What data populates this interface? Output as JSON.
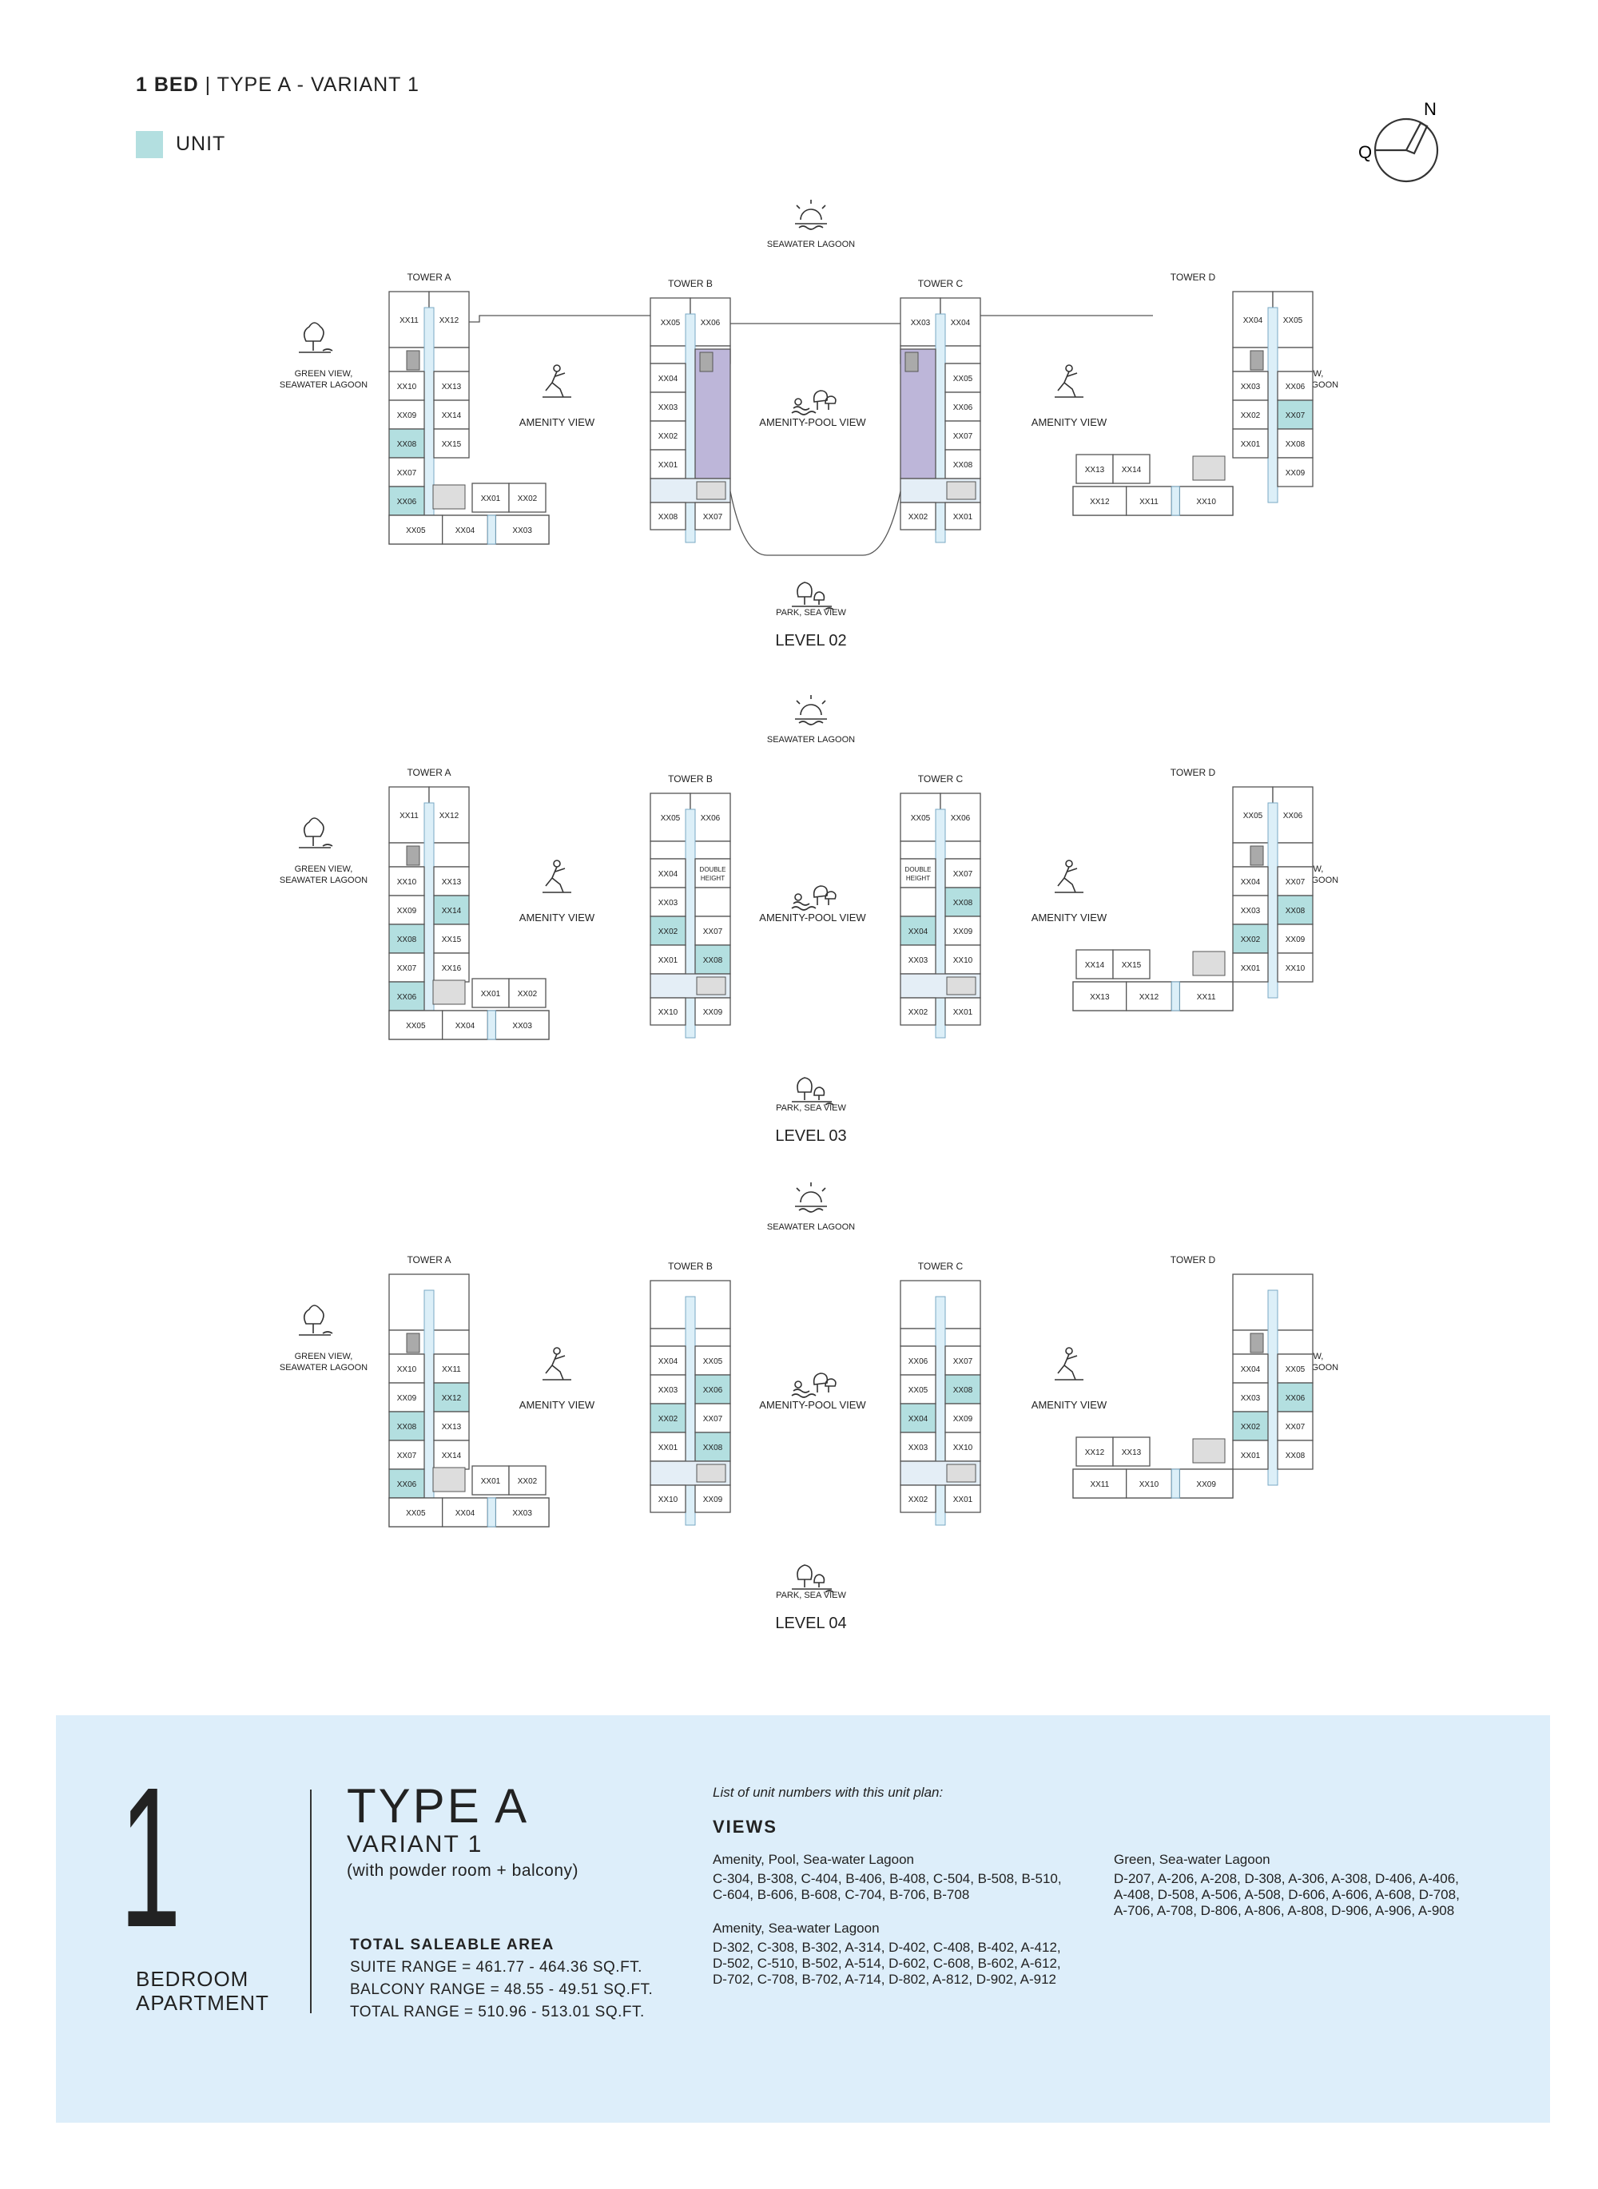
{
  "header": {
    "title_bold": "1 BED",
    "title_rest": "| TYPE A - VARIANT 1",
    "legend_label": "UNIT",
    "legend_color": "#b3dfe0"
  },
  "compass": {
    "north": "N",
    "letter": "Q"
  },
  "colors": {
    "unit": "#b3dfe0",
    "amenity": "#bdb6d9",
    "corridor": "#dceff8",
    "outline": "#555555"
  },
  "view_labels": {
    "seawater_lagoon": "SEAWATER LAGOON",
    "park_sea": "PARK, SEA VIEW",
    "green_l1": "GREEN VIEW,",
    "green_l2": "SEAWATER LAGOON",
    "amenity": "AMENITY VIEW",
    "amenity_pool": "AMENITY-POOL VIEW"
  },
  "towers": {
    "a": "TOWER A",
    "b": "TOWER B",
    "c": "TOWER C",
    "d": "TOWER D"
  },
  "levels": [
    {
      "name": "LEVEL 02",
      "a": {
        "top": [
          "XX11",
          "XX12"
        ],
        "left": [
          "XX10",
          "XX09",
          "XX08",
          "XX07",
          "XX06"
        ],
        "right": [
          "XX13",
          "XX14",
          "XX15"
        ],
        "wing": [
          "XX01",
          "XX02"
        ],
        "bottom": [
          "XX05",
          "XX04",
          "XX03"
        ],
        "highlight": [
          "XX08",
          "XX06"
        ]
      },
      "b": {
        "top": [
          "XX05",
          "XX06"
        ],
        "left": [
          "XX04",
          "XX03",
          "XX02",
          "XX01"
        ],
        "right": [],
        "bottom": [
          "XX08",
          "XX07"
        ],
        "highlight": [],
        "amenity_block": true
      },
      "c": {
        "top": [
          "XX03",
          "XX04"
        ],
        "left": [],
        "right": [
          "XX05",
          "XX06",
          "XX07",
          "XX08"
        ],
        "bottom": [
          "XX02",
          "XX01"
        ],
        "highlight": [],
        "amenity_block": true
      },
      "d": {
        "top": [
          "XX04",
          "XX05"
        ],
        "left": [
          "XX03",
          "XX02",
          "XX01"
        ],
        "right": [
          "XX06",
          "XX07",
          "XX08",
          "XX09"
        ],
        "wing": [
          "XX13",
          "XX14"
        ],
        "bottom": [
          "XX12",
          "XX11",
          "XX10"
        ],
        "highlight": [
          "XX07"
        ]
      }
    },
    {
      "name": "LEVEL 03",
      "a": {
        "top": [
          "XX11",
          "XX12"
        ],
        "left": [
          "XX10",
          "XX09",
          "XX08",
          "XX07",
          "XX06"
        ],
        "right": [
          "XX13",
          "XX14",
          "XX15",
          "XX16"
        ],
        "wing": [
          "XX01",
          "XX02"
        ],
        "bottom": [
          "XX05",
          "XX04",
          "XX03"
        ],
        "highlight": [
          "XX14",
          "XX08",
          "XX06"
        ]
      },
      "b": {
        "top": [
          "XX05",
          "XX06"
        ],
        "left": [
          "XX04",
          "XX03",
          "XX02",
          "XX01"
        ],
        "right": [
          "DOUBLE HEIGHT",
          "",
          "XX07",
          "XX08"
        ],
        "bottom": [
          "XX10",
          "XX09"
        ],
        "highlight": [
          "XX02",
          "XX08"
        ]
      },
      "c": {
        "top": [
          "XX05",
          "XX06"
        ],
        "left": [
          "DOUBLE HEIGHT",
          "",
          "XX04",
          "XX03"
        ],
        "right": [
          "XX07",
          "XX08",
          "XX09",
          "XX10"
        ],
        "bottom": [
          "XX02",
          "XX01"
        ],
        "highlight": [
          "XX08",
          "XX04"
        ]
      },
      "d": {
        "top": [
          "XX05",
          "XX06"
        ],
        "left": [
          "XX04",
          "XX03",
          "XX02",
          "XX01"
        ],
        "right": [
          "XX07",
          "XX08",
          "XX09",
          "XX10"
        ],
        "wing": [
          "XX14",
          "XX15"
        ],
        "bottom": [
          "XX13",
          "XX12",
          "XX11"
        ],
        "highlight": [
          "XX08",
          "XX02"
        ]
      }
    },
    {
      "name": "LEVEL 04",
      "a": {
        "top": [],
        "left": [
          "XX10",
          "XX09",
          "XX08",
          "XX07",
          "XX06"
        ],
        "right": [
          "XX11",
          "XX12",
          "XX13",
          "XX14"
        ],
        "wing": [
          "XX01",
          "XX02"
        ],
        "bottom": [
          "XX05",
          "XX04",
          "XX03"
        ],
        "highlight": [
          "XX12",
          "XX08",
          "XX06"
        ]
      },
      "b": {
        "top": [],
        "left": [
          "XX04",
          "XX03",
          "XX02",
          "XX01"
        ],
        "right": [
          "XX05",
          "XX06",
          "XX07",
          "XX08"
        ],
        "bottom": [
          "XX10",
          "XX09"
        ],
        "highlight": [
          "XX06",
          "XX02",
          "XX08"
        ]
      },
      "c": {
        "top": [],
        "left": [
          "XX06",
          "XX05",
          "XX04",
          "XX03"
        ],
        "right": [
          "XX07",
          "XX08",
          "XX09",
          "XX10"
        ],
        "bottom": [
          "XX02",
          "XX01"
        ],
        "highlight": [
          "XX08",
          "XX04"
        ]
      },
      "d": {
        "top": [],
        "left": [
          "XX04",
          "XX03",
          "XX02",
          "XX01"
        ],
        "right": [
          "XX05",
          "XX06",
          "XX07",
          "XX08"
        ],
        "wing": [
          "XX12",
          "XX13"
        ],
        "bottom": [
          "XX11",
          "XX10",
          "XX09"
        ],
        "highlight": [
          "XX06",
          "XX02"
        ]
      }
    }
  ],
  "info": {
    "big_number": "1",
    "apt_line1": "BEDROOM",
    "apt_line2": "APARTMENT",
    "type_title": "TYPE A",
    "variant": "VARIANT 1",
    "note": "(with powder room + balcony)",
    "area_title": "TOTAL SALEABLE AREA",
    "suite_range": "SUITE RANGE = 461.77 - 464.36 SQ.FT.",
    "balcony_range": "BALCONY RANGE = 48.55 - 49.51 SQ.FT.",
    "total_range": "TOTAL RANGE = 510.96 - 513.01 SQ.FT.",
    "list_heading": "List of unit numbers with this unit plan:",
    "views_heading": "VIEWS",
    "group1_title": "Amenity, Pool, Sea-water Lagoon",
    "group1_units": "C-304, B-308, C-404, B-406, B-408, C-504, B-508, B-510, C-604, B-606, B-608, C-704, B-706, B-708",
    "group2_title": "Amenity, Sea-water Lagoon",
    "group2_units": "D-302, C-308, B-302, A-314, D-402, C-408, B-402, A-412, D-502, C-510, B-502, A-514, D-602, C-608, B-602, A-612, D-702, C-708, B-702, A-714, D-802, A-812, D-902, A-912",
    "group3_title": "Green, Sea-water Lagoon",
    "group3_units": "D-207, A-206, A-208, D-308, A-306, A-308, D-406, A-406, A-408, D-508, A-506, A-508, D-606, A-606, A-608, D-708, A-706, A-708, D-806, A-806, A-808, D-906, A-906, A-908"
  }
}
